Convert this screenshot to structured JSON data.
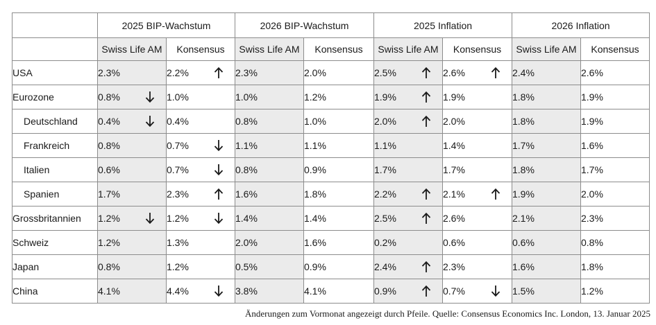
{
  "groups": [
    "2025 BIP-Wachstum",
    "2026 BIP-Wachstum",
    "2025 Inflation",
    "2026 Inflation"
  ],
  "subheaders": [
    "Swiss Life AM",
    "Konsensus",
    "Swiss Life AM",
    "Konsensus",
    "Swiss Life AM",
    "Konsensus",
    "Swiss Life AM",
    "Konsensus"
  ],
  "rows": [
    {
      "country": "USA",
      "indent": false,
      "cells": [
        {
          "v": "2.3%",
          "arrow": ""
        },
        {
          "v": "2.2%",
          "arrow": "up"
        },
        {
          "v": "2.3%",
          "arrow": ""
        },
        {
          "v": "2.0%",
          "arrow": ""
        },
        {
          "v": "2.5%",
          "arrow": "up"
        },
        {
          "v": "2.6%",
          "arrow": "up"
        },
        {
          "v": "2.4%",
          "arrow": ""
        },
        {
          "v": "2.6%",
          "arrow": ""
        }
      ]
    },
    {
      "country": "Eurozone",
      "indent": false,
      "cells": [
        {
          "v": "0.8%",
          "arrow": "down"
        },
        {
          "v": "1.0%",
          "arrow": ""
        },
        {
          "v": "1.0%",
          "arrow": ""
        },
        {
          "v": "1.2%",
          "arrow": ""
        },
        {
          "v": "1.9%",
          "arrow": "up"
        },
        {
          "v": "1.9%",
          "arrow": ""
        },
        {
          "v": "1.8%",
          "arrow": ""
        },
        {
          "v": "1.9%",
          "arrow": ""
        }
      ]
    },
    {
      "country": "Deutschland",
      "indent": true,
      "cells": [
        {
          "v": "0.4%",
          "arrow": "down"
        },
        {
          "v": "0.4%",
          "arrow": ""
        },
        {
          "v": "0.8%",
          "arrow": ""
        },
        {
          "v": "1.0%",
          "arrow": ""
        },
        {
          "v": "2.0%",
          "arrow": "up"
        },
        {
          "v": "2.0%",
          "arrow": ""
        },
        {
          "v": "1.8%",
          "arrow": ""
        },
        {
          "v": "1.9%",
          "arrow": ""
        }
      ]
    },
    {
      "country": "Frankreich",
      "indent": true,
      "cells": [
        {
          "v": "0.8%",
          "arrow": ""
        },
        {
          "v": "0.7%",
          "arrow": "down"
        },
        {
          "v": "1.1%",
          "arrow": ""
        },
        {
          "v": "1.1%",
          "arrow": ""
        },
        {
          "v": "1.1%",
          "arrow": ""
        },
        {
          "v": "1.4%",
          "arrow": ""
        },
        {
          "v": "1.7%",
          "arrow": ""
        },
        {
          "v": "1.6%",
          "arrow": ""
        }
      ]
    },
    {
      "country": "Italien",
      "indent": true,
      "cells": [
        {
          "v": "0.6%",
          "arrow": ""
        },
        {
          "v": "0.7%",
          "arrow": "down"
        },
        {
          "v": "0.8%",
          "arrow": ""
        },
        {
          "v": "0.9%",
          "arrow": ""
        },
        {
          "v": "1.7%",
          "arrow": ""
        },
        {
          "v": "1.7%",
          "arrow": ""
        },
        {
          "v": "1.8%",
          "arrow": ""
        },
        {
          "v": "1.7%",
          "arrow": ""
        }
      ]
    },
    {
      "country": "Spanien",
      "indent": true,
      "cells": [
        {
          "v": "1.7%",
          "arrow": ""
        },
        {
          "v": "2.3%",
          "arrow": "up"
        },
        {
          "v": "1.6%",
          "arrow": ""
        },
        {
          "v": "1.8%",
          "arrow": ""
        },
        {
          "v": "2.2%",
          "arrow": "up"
        },
        {
          "v": "2.1%",
          "arrow": "up"
        },
        {
          "v": "1.9%",
          "arrow": ""
        },
        {
          "v": "2.0%",
          "arrow": ""
        }
      ]
    },
    {
      "country": "Grossbritannien",
      "indent": false,
      "cells": [
        {
          "v": "1.2%",
          "arrow": "down"
        },
        {
          "v": "1.2%",
          "arrow": "down"
        },
        {
          "v": "1.4%",
          "arrow": ""
        },
        {
          "v": "1.4%",
          "arrow": ""
        },
        {
          "v": "2.5%",
          "arrow": "up"
        },
        {
          "v": "2.6%",
          "arrow": ""
        },
        {
          "v": "2.1%",
          "arrow": ""
        },
        {
          "v": "2.3%",
          "arrow": ""
        }
      ]
    },
    {
      "country": "Schweiz",
      "indent": false,
      "cells": [
        {
          "v": "1.2%",
          "arrow": ""
        },
        {
          "v": "1.3%",
          "arrow": ""
        },
        {
          "v": "2.0%",
          "arrow": ""
        },
        {
          "v": "1.6%",
          "arrow": ""
        },
        {
          "v": "0.2%",
          "arrow": ""
        },
        {
          "v": "0.6%",
          "arrow": ""
        },
        {
          "v": "0.6%",
          "arrow": ""
        },
        {
          "v": "0.8%",
          "arrow": ""
        }
      ]
    },
    {
      "country": "Japan",
      "indent": false,
      "cells": [
        {
          "v": "0.8%",
          "arrow": ""
        },
        {
          "v": "1.2%",
          "arrow": ""
        },
        {
          "v": "0.5%",
          "arrow": ""
        },
        {
          "v": "0.9%",
          "arrow": ""
        },
        {
          "v": "2.4%",
          "arrow": "up"
        },
        {
          "v": "2.3%",
          "arrow": ""
        },
        {
          "v": "1.6%",
          "arrow": ""
        },
        {
          "v": "1.8%",
          "arrow": ""
        }
      ]
    },
    {
      "country": "China",
      "indent": false,
      "cells": [
        {
          "v": "4.1%",
          "arrow": ""
        },
        {
          "v": "4.4%",
          "arrow": "down"
        },
        {
          "v": "3.8%",
          "arrow": ""
        },
        {
          "v": "4.1%",
          "arrow": ""
        },
        {
          "v": "0.9%",
          "arrow": "up"
        },
        {
          "v": "0.7%",
          "arrow": "down"
        },
        {
          "v": "1.5%",
          "arrow": ""
        },
        {
          "v": "1.2%",
          "arrow": ""
        }
      ]
    }
  ],
  "footnote": "Änderungen zum Vormonat angezeigt durch Pfeile. Quelle: Consensus Economics Inc. London, 13. Januar 2025",
  "colors": {
    "shaded": "#ebebeb",
    "border": "#8c8c8c",
    "text": "#1a1a1a"
  }
}
